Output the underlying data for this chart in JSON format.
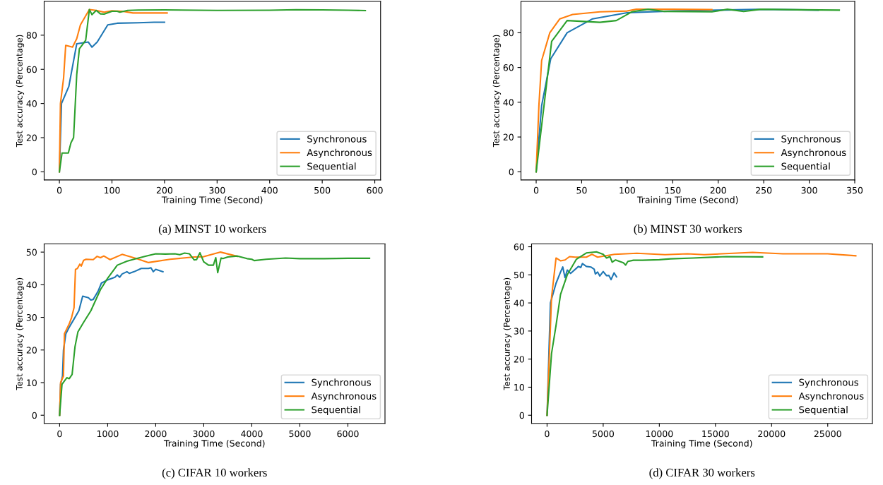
{
  "chart_data": [
    {
      "type": "line",
      "xlabel": "Training Time (Second)",
      "ylabel": "Test accuracy (Percentage)",
      "annotations": [
        "(a) MINST 10 workers"
      ],
      "xlim": [
        -29,
        611
      ],
      "ylim": [
        -4.75,
        99.75
      ],
      "xticks": [
        0,
        100,
        200,
        300,
        400,
        500,
        600
      ],
      "yticks": [
        0,
        20,
        40,
        60,
        80
      ],
      "legend": "bottom right",
      "grid": false,
      "series": [
        {
          "name": "Synchronous",
          "color": "#1f77b4",
          "x": [
            0,
            4,
            18,
            33,
            55,
            62,
            72,
            92,
            110,
            150,
            180,
            200
          ],
          "values": [
            0,
            40,
            50,
            75,
            76,
            73,
            76,
            86,
            87,
            87.3,
            87.6,
            87.6
          ]
        },
        {
          "name": "Asynchronous",
          "color": "#ff7f0e",
          "x": [
            0,
            2,
            8,
            12,
            25,
            33,
            40,
            57,
            70,
            85,
            100,
            120,
            140,
            170,
            205
          ],
          "values": [
            0,
            40,
            55,
            74,
            73,
            78,
            86,
            95,
            94.5,
            93.5,
            94.3,
            94,
            93,
            93,
            93
          ]
        },
        {
          "name": "Sequential",
          "color": "#2ca02c",
          "x": [
            0,
            5,
            17,
            22,
            27,
            33,
            38,
            50,
            57,
            62,
            70,
            78,
            85,
            100,
            110,
            115,
            130,
            150,
            200,
            300,
            400,
            450,
            500,
            550,
            582
          ],
          "values": [
            0,
            11,
            11,
            17,
            20,
            57,
            72,
            77,
            95,
            92,
            94.5,
            92.5,
            92.3,
            94,
            94,
            93.5,
            94.5,
            94.7,
            94.8,
            94.5,
            94.6,
            94.9,
            94.8,
            94.6,
            94.4
          ]
        }
      ]
    },
    {
      "type": "line",
      "xlabel": "Training Time (Second)",
      "ylabel": "Test accuracy (Percentage)",
      "annotations": [
        "(b) MINST 30 workers"
      ],
      "xlim": [
        -16.7,
        350
      ],
      "ylim": [
        -4.7,
        98
      ],
      "xticks": [
        0,
        50,
        100,
        150,
        200,
        250,
        300,
        350
      ],
      "yticks": [
        0,
        20,
        40,
        60,
        80
      ],
      "legend": "bottom right",
      "grid": false,
      "series": [
        {
          "name": "Synchronous",
          "color": "#1f77b4",
          "x": [
            0,
            6,
            16,
            34,
            62,
            100,
            150,
            200,
            250,
            310
          ],
          "values": [
            0,
            38,
            65,
            80,
            88,
            91.5,
            92.5,
            93,
            93.5,
            93
          ]
        },
        {
          "name": "Asynchronous",
          "color": "#ff7f0e",
          "x": [
            0,
            3,
            6,
            15,
            26,
            40,
            70,
            100,
            110,
            150,
            193
          ],
          "values": [
            0,
            38,
            64,
            80,
            88,
            90.5,
            92,
            92.5,
            93.5,
            93.5,
            93.3
          ]
        },
        {
          "name": "Sequential",
          "color": "#2ca02c",
          "x": [
            0,
            17,
            34,
            70,
            88,
            105,
            123,
            140,
            193,
            210,
            228,
            247,
            290,
            333
          ],
          "values": [
            0,
            75,
            87,
            86,
            87,
            92,
            93.5,
            92.3,
            92,
            93.5,
            92.2,
            93.5,
            93.2,
            93
          ]
        }
      ]
    },
    {
      "type": "line",
      "xlabel": "Training Time (Second)",
      "ylabel": "Test accuracy (Percentage)",
      "annotations": [
        "(c) CIFAR 10 workers"
      ],
      "xlim": [
        -322,
        6772
      ],
      "ylim": [
        -2.5,
        52.5
      ],
      "xticks": [
        0,
        1000,
        2000,
        3000,
        4000,
        5000,
        6000
      ],
      "yticks": [
        0,
        10,
        20,
        30,
        40,
        50
      ],
      "legend": "bottom right",
      "grid": false,
      "series": [
        {
          "name": "Synchronous",
          "color": "#1f77b4",
          "x": [
            0,
            20,
            60,
            80,
            130,
            200,
            300,
            400,
            480,
            600,
            650,
            700,
            800,
            870,
            1000,
            1150,
            1200,
            1250,
            1300,
            1400,
            1450,
            1550,
            1700,
            1850,
            1900,
            1950,
            2000,
            2150
          ],
          "values": [
            0,
            9.5,
            12,
            20,
            25,
            27,
            29.5,
            32,
            36.5,
            36,
            35.3,
            35.5,
            38,
            40.5,
            41.5,
            42.3,
            43,
            42.3,
            43.3,
            44,
            43.5,
            44,
            45,
            45,
            45.2,
            44,
            44.7,
            44
          ]
        },
        {
          "name": "Asynchronous",
          "color": "#ff7f0e",
          "x": [
            0,
            20,
            80,
            100,
            200,
            250,
            300,
            330,
            370,
            420,
            450,
            500,
            550,
            700,
            780,
            850,
            920,
            1050,
            1300,
            1600,
            1850,
            2300,
            2800,
            3000,
            3350,
            3700
          ],
          "values": [
            0,
            10,
            12,
            25,
            28,
            30,
            33,
            44.7,
            45,
            46.3,
            45.7,
            47.5,
            47.8,
            47.7,
            48.7,
            48.3,
            48.8,
            47.7,
            49.3,
            48,
            46.8,
            47.8,
            48.5,
            48.6,
            50,
            48.7
          ]
        },
        {
          "name": "Sequential",
          "color": "#2ca02c",
          "x": [
            0,
            50,
            100,
            150,
            200,
            260,
            320,
            380,
            500,
            650,
            850,
            1000,
            1200,
            1400,
            1600,
            1800,
            2000,
            2200,
            2400,
            2500,
            2600,
            2700,
            2800,
            2850,
            2920,
            3000,
            3100,
            3200,
            3250,
            3290,
            3360,
            3400,
            3500,
            3700,
            3900,
            4000,
            4050,
            4300,
            4700,
            5000,
            5500,
            6000,
            6450
          ],
          "values": [
            0,
            9.5,
            10.5,
            11.5,
            11.2,
            12.5,
            21,
            25.5,
            28.5,
            32,
            38.5,
            42,
            46,
            47.2,
            48,
            48.8,
            49.5,
            49.4,
            49.5,
            49.2,
            49.7,
            49.5,
            47.6,
            47.7,
            49.8,
            47,
            46,
            46,
            48.3,
            43.7,
            48.2,
            48,
            48.5,
            48.8,
            48,
            47.8,
            47.4,
            47.8,
            48.2,
            48,
            48,
            48.1,
            48.1
          ]
        }
      ]
    },
    {
      "type": "line",
      "xlabel": "Training Time (Second)",
      "ylabel": "Test accuracy (Percentage)",
      "annotations": [
        "(d) CIFAR 30 workers"
      ],
      "xlim": [
        -1380,
        28980
      ],
      "ylim": [
        -2.9,
        61
      ],
      "xticks": [
        0,
        5000,
        10000,
        15000,
        20000,
        25000
      ],
      "yticks": [
        0,
        10,
        20,
        30,
        40,
        50,
        60
      ],
      "legend": "bottom right",
      "grid": false,
      "series": [
        {
          "name": "Synchronous",
          "color": "#1f77b4",
          "x": [
            0,
            300,
            800,
            1200,
            1400,
            1600,
            1800,
            2100,
            2800,
            3000,
            3150,
            3500,
            3900,
            4200,
            4300,
            4500,
            4700,
            5000,
            5300,
            5500,
            5700,
            5970,
            6190
          ],
          "values": [
            0,
            40,
            47,
            51,
            52.8,
            49,
            51.7,
            50.5,
            53,
            52.6,
            54,
            53,
            52.8,
            52,
            50.3,
            51,
            49.6,
            51.2,
            49.7,
            49.8,
            48.3,
            50.7,
            49.3
          ]
        },
        {
          "name": "Asynchronous",
          "color": "#ff7f0e",
          "x": [
            0,
            400,
            800,
            1200,
            1600,
            2000,
            2500,
            3500,
            4000,
            4500,
            6000,
            8000,
            10500,
            12500,
            14000,
            18300,
            21000,
            25000,
            27500
          ],
          "values": [
            0,
            42,
            56,
            55,
            55.3,
            56.5,
            56.3,
            56.3,
            57.3,
            56.3,
            57.3,
            57.7,
            57.2,
            57.5,
            57.2,
            58,
            57.5,
            57.5,
            56.8
          ]
        },
        {
          "name": "Sequential",
          "color": "#2ca02c",
          "x": [
            0,
            400,
            800,
            1200,
            1800,
            2600,
            3500,
            4400,
            5000,
            5300,
            5600,
            5800,
            6100,
            6800,
            7000,
            7200,
            7700,
            8500,
            10000,
            11000,
            13000,
            16000,
            19200
          ],
          "values": [
            0,
            22,
            32,
            43,
            50,
            55.5,
            57.8,
            58.2,
            57.3,
            56,
            56.5,
            54.5,
            55.3,
            54.3,
            53.5,
            54.8,
            55.2,
            55.2,
            55.4,
            55.7,
            56,
            56.5,
            56.4
          ]
        }
      ]
    }
  ]
}
